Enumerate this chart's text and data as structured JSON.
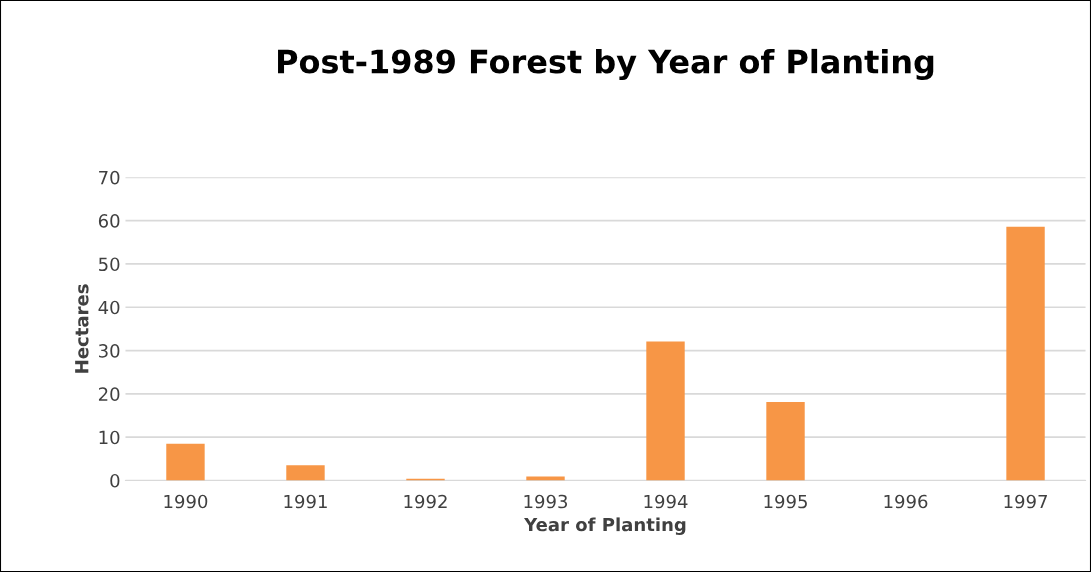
{
  "chart_data": {
    "type": "bar",
    "title": "Post-1989 Forest by Year of Planting",
    "xlabel": "Year of Planting",
    "ylabel": "Hectares",
    "categories": [
      "1990",
      "1991",
      "1992",
      "1993",
      "1994",
      "1995",
      "1996",
      "1997"
    ],
    "values": [
      8.5,
      3.5,
      0.4,
      0.9,
      32.1,
      18.1,
      0,
      58.6
    ],
    "color": "#f79646",
    "ylim": [
      0,
      70
    ],
    "yticks": [
      0,
      10,
      20,
      30,
      40,
      50,
      60,
      70
    ],
    "grid": "y"
  }
}
